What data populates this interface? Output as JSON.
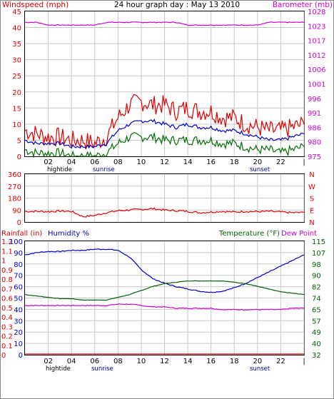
{
  "title": "24 hour graph day : May 13 2010",
  "colors": {
    "wind": "#e00000",
    "wind_avg": "#0000c8",
    "wind_low": "#007000",
    "baro": "#d000d0",
    "dir": "#e00000",
    "humidity": "#0000c8",
    "temperature": "#006000",
    "dewpoint": "#d000d0",
    "rainfall": "#e00000",
    "grid": "#c8c8c8",
    "frame": "#000000"
  },
  "x_ticks": [
    "02",
    "04",
    "06",
    "08",
    "10",
    "12",
    "14",
    "16",
    "18",
    "20",
    "22"
  ],
  "events_text": {
    "hightide": "hightide",
    "sunrise": "sunrise",
    "sunset": "sunset"
  },
  "chart_data": [
    {
      "type": "line",
      "name": "wind-baro",
      "left_label": "Windspeed (mph)",
      "right_label": "Barometer (mb)",
      "left_ticks": [
        "45",
        "40",
        "35",
        "30",
        "25",
        "20",
        "15",
        "10",
        "5",
        "0"
      ],
      "right_ticks": [
        "1028",
        "1023",
        "1017",
        "1012",
        "1006",
        "1001",
        "996",
        "991",
        "986",
        "980",
        "975"
      ],
      "ylim_left": [
        0,
        45
      ],
      "ylim_right": [
        975,
        1028
      ],
      "hours": [
        0,
        1,
        2,
        3,
        4,
        5,
        6,
        7,
        8,
        9,
        10,
        11,
        12,
        13,
        14,
        15,
        16,
        17,
        18,
        19,
        20,
        21,
        22,
        23,
        24
      ],
      "series": [
        {
          "key": "wind_gust",
          "values": [
            8,
            7,
            6,
            6,
            5,
            5,
            4,
            6,
            12,
            16,
            17,
            16,
            16,
            14,
            15,
            14,
            14,
            12,
            12,
            10,
            9,
            8,
            8,
            9,
            10
          ]
        },
        {
          "key": "wind_avg",
          "values": [
            5,
            4,
            4,
            4,
            3,
            3,
            3,
            4,
            8,
            10,
            11,
            11,
            10,
            9,
            10,
            9,
            9,
            8,
            8,
            7,
            6,
            5,
            5,
            6,
            7
          ]
        },
        {
          "key": "wind_low",
          "values": [
            2,
            1,
            1,
            1,
            0,
            0,
            0,
            1,
            4,
            6,
            6,
            6,
            5,
            5,
            5,
            5,
            5,
            4,
            4,
            3,
            2,
            2,
            1,
            2,
            3
          ]
        },
        {
          "key": "barometer",
          "values": [
            1024,
            1024,
            1023,
            1023,
            1023,
            1023,
            1023,
            1024,
            1024,
            1024,
            1024,
            1024,
            1024,
            1024,
            1023,
            1023,
            1023,
            1023,
            1023,
            1023,
            1023,
            1024,
            1024,
            1024,
            1024
          ]
        }
      ]
    },
    {
      "type": "line",
      "name": "wind-direction",
      "left_ticks": [
        "360",
        "270",
        "180",
        "90",
        "0"
      ],
      "right_ticks": [
        "N",
        "W",
        "S",
        "E",
        "N"
      ],
      "ylim": [
        0,
        360
      ],
      "hours": [
        0,
        1,
        2,
        3,
        4,
        5,
        6,
        7,
        8,
        9,
        10,
        11,
        12,
        13,
        14,
        15,
        16,
        17,
        18,
        19,
        20,
        21,
        22,
        23,
        24
      ],
      "series": [
        {
          "key": "direction",
          "values": [
            80,
            80,
            78,
            82,
            80,
            40,
            50,
            70,
            85,
            90,
            95,
            100,
            90,
            85,
            80,
            70,
            75,
            80,
            75,
            80,
            78,
            80,
            75,
            70,
            72
          ]
        }
      ]
    },
    {
      "type": "line",
      "name": "temp-humidity",
      "labels": {
        "rainfall": "Rainfall (in)",
        "humidity": "Humidity %",
        "temperature": "Temperature (°F)",
        "dewpoint": "Dew Point"
      },
      "rain_ticks": [
        "1.2",
        "1.1",
        "1",
        "0.9",
        "0.8",
        "0.7",
        "0.6",
        "0.5",
        "0.4",
        "0.3",
        "0.2",
        "0.1",
        "0"
      ],
      "humidity_ticks": [
        "100",
        "90",
        "80",
        "70",
        "60",
        "50",
        "40",
        "30",
        "20",
        "10",
        "0"
      ],
      "temp_ticks": [
        "115",
        "107",
        "98",
        "90",
        "82",
        "74",
        "65",
        "57",
        "49",
        "40",
        "32"
      ],
      "ylim_humidity": [
        0,
        100
      ],
      "ylim_temp": [
        32,
        115
      ],
      "hours": [
        0,
        1,
        2,
        3,
        4,
        5,
        6,
        7,
        8,
        9,
        10,
        11,
        12,
        13,
        14,
        15,
        16,
        17,
        18,
        19,
        20,
        21,
        22,
        23,
        24
      ],
      "series": [
        {
          "key": "humidity",
          "values": [
            88,
            90,
            91,
            91,
            92,
            92,
            93,
            93,
            92,
            86,
            75,
            67,
            63,
            60,
            58,
            56,
            55,
            56,
            59,
            63,
            68,
            73,
            78,
            83,
            88
          ]
        },
        {
          "key": "temperature",
          "values": [
            76,
            75,
            74,
            73,
            73,
            72,
            72,
            72,
            74,
            76,
            79,
            82,
            84,
            85,
            86,
            86,
            86,
            86,
            85,
            84,
            82,
            80,
            78,
            77,
            76
          ]
        },
        {
          "key": "dewpoint",
          "values": [
            68,
            68,
            68,
            68,
            68,
            68,
            68,
            68,
            69,
            69,
            68,
            67,
            67,
            66,
            66,
            66,
            66,
            65,
            65,
            65,
            65,
            65,
            65,
            66,
            66
          ]
        },
        {
          "key": "rainfall",
          "values": [
            0,
            0,
            0,
            0,
            0,
            0,
            0,
            0,
            0,
            0,
            0,
            0,
            0,
            0,
            0,
            0,
            0,
            0,
            0,
            0,
            0,
            0,
            0,
            0,
            0
          ]
        }
      ]
    }
  ]
}
